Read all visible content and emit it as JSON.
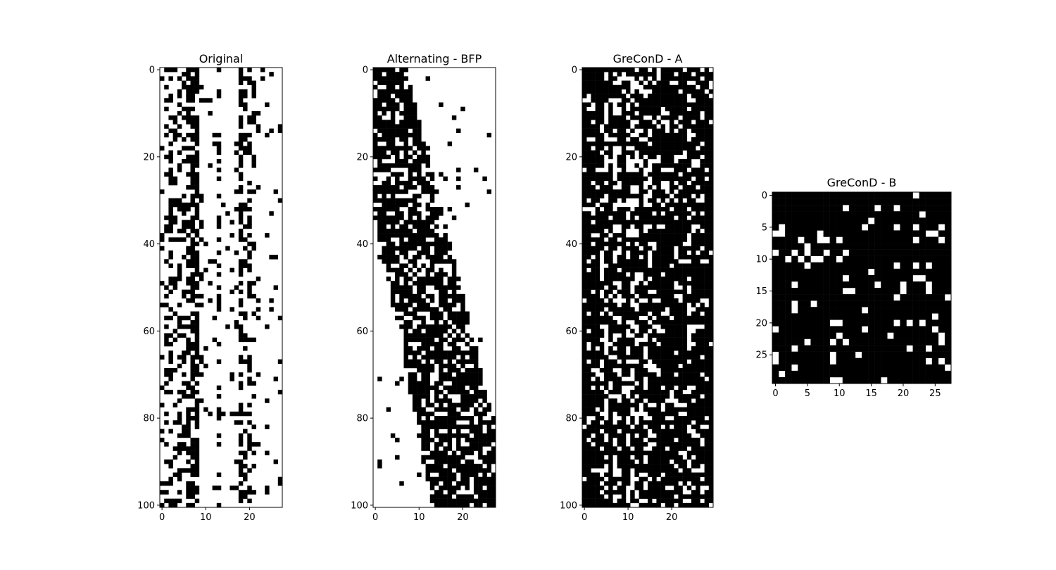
{
  "chart_data": [
    {
      "type": "heatmap",
      "title": "Original",
      "rows": 101,
      "cols": 28,
      "xticks": [
        0,
        10,
        20
      ],
      "yticks": [
        0,
        20,
        40,
        60,
        80,
        100
      ],
      "colormap": "binary",
      "column_density": [
        0.15,
        0.3,
        0.45,
        0.35,
        0.4,
        0.45,
        0.5,
        0.75,
        0.8,
        0.2,
        0.05,
        0.05,
        0.05,
        0.4,
        0.05,
        0.05,
        0.1,
        0.1,
        0.7,
        0.3,
        0.35,
        0.25,
        0.1,
        0.05,
        0.05,
        0.05,
        0.05,
        0.05
      ],
      "seed": 11
    },
    {
      "type": "heatmap",
      "title": "Alternating - BFP",
      "rows": 101,
      "cols": 28,
      "xticks": [
        0,
        10,
        20
      ],
      "yticks": [
        0,
        20,
        40,
        60,
        80,
        100
      ],
      "colormap": "binary",
      "structure": "staircase",
      "seed": 23
    },
    {
      "type": "heatmap",
      "title": "GreConD - A",
      "rows": 101,
      "cols": 30,
      "xticks": [
        0,
        10,
        20
      ],
      "yticks": [
        0,
        20,
        40,
        60,
        80,
        100
      ],
      "colormap": "binary",
      "column_density": [
        0.95,
        0.85,
        0.8,
        0.85,
        0.7,
        0.5,
        0.85,
        0.55,
        0.6,
        0.95,
        0.6,
        0.55,
        0.6,
        0.75,
        0.65,
        0.7,
        0.8,
        0.85,
        0.8,
        0.85,
        0.9,
        0.75,
        0.8,
        0.85,
        0.65,
        0.75,
        0.85,
        0.7,
        0.9,
        0.9
      ],
      "seed": 37
    },
    {
      "type": "heatmap",
      "title": "GreConD - B",
      "rows": 30,
      "cols": 28,
      "xticks": [
        0,
        5,
        10,
        15,
        20,
        25
      ],
      "yticks": [
        0,
        5,
        10,
        15,
        20,
        25
      ],
      "colormap": "binary",
      "density": 0.88,
      "seed": 53
    }
  ]
}
